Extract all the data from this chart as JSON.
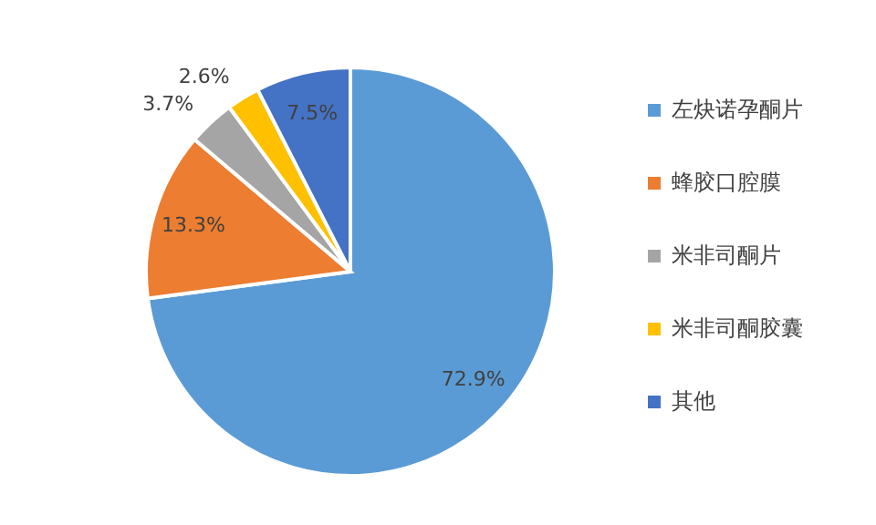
{
  "chart_data": {
    "type": "pie",
    "categories": [
      "左炔诺孕酮片",
      "蜂胶口腔膜",
      "米非司酮片",
      "米非司酮胶囊",
      "其他"
    ],
    "values": [
      72.9,
      13.3,
      3.7,
      2.6,
      7.5
    ],
    "colors": [
      "#5b9bd5",
      "#ed7d31",
      "#a5a5a5",
      "#ffc000",
      "#4472c4"
    ],
    "value_labels": [
      "72.9%",
      "13.3%",
      "3.7%",
      "2.6%",
      "7.5%"
    ],
    "legend": "right"
  }
}
